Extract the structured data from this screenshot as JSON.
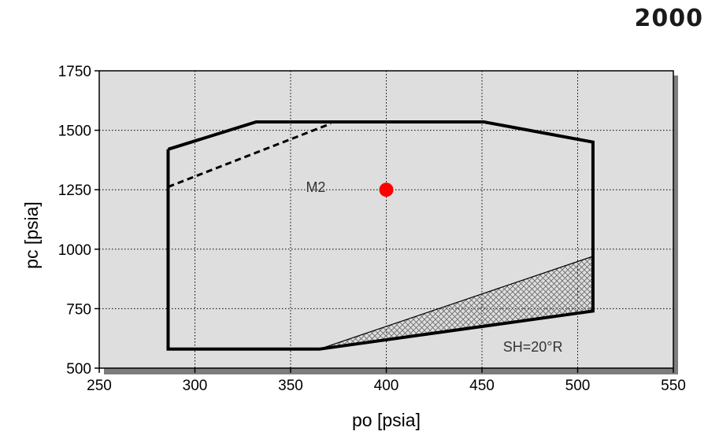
{
  "corner_label": "2000",
  "chart_data": {
    "type": "scatter",
    "title": "",
    "xlabel": "po [psia]",
    "ylabel": "pc [psia]",
    "xlim": [
      250,
      550
    ],
    "ylim": [
      500,
      1750
    ],
    "xticks": [
      250,
      300,
      350,
      400,
      450,
      500,
      550
    ],
    "yticks": [
      500,
      750,
      1000,
      1250,
      1500,
      1750
    ],
    "grid": true,
    "envelope": {
      "x": [
        286,
        286,
        332,
        451,
        508,
        508,
        365,
        286
      ],
      "y": [
        1420,
        1260,
        1535,
        1535,
        1450,
        740,
        580,
        580
      ]
    },
    "envelope_outline": {
      "x": [
        286,
        332,
        451,
        508,
        508,
        365,
        286,
        286
      ],
      "y": [
        1420,
        1535,
        1535,
        1450,
        740,
        580,
        580,
        1420
      ]
    },
    "dashed_line": {
      "x": [
        286,
        371
      ],
      "y": [
        1262,
        1528
      ]
    },
    "hatched_region": {
      "x": [
        365,
        508,
        508
      ],
      "y": [
        580,
        970,
        740
      ]
    },
    "point": {
      "x": 400,
      "y": 1250,
      "color": "#ff0000"
    },
    "annotations": [
      {
        "text": "M2",
        "x": 358,
        "y": 1240
      },
      {
        "text": "SH=20°R",
        "x": 461,
        "y": 570
      }
    ]
  }
}
